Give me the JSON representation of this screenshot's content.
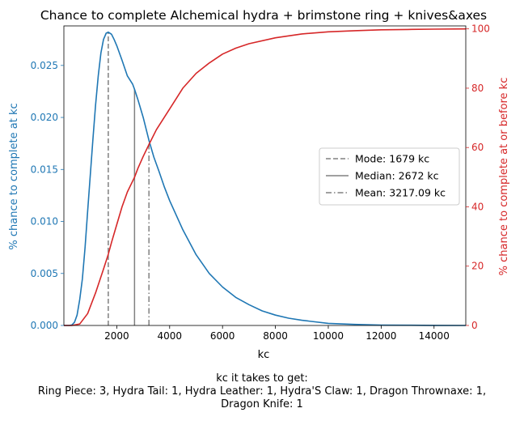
{
  "chart_data": {
    "type": "line",
    "title": "Chance to complete Alchemical hydra + brimstone ring + knives&axes",
    "xlabel": "kc",
    "ylabel_left": "% chance to complete at kc",
    "ylabel_right": "% chance to complete at or before kc",
    "xlim": [
      0,
      15200
    ],
    "ylim_left": [
      0,
      0.0288
    ],
    "ylim_right": [
      0,
      101
    ],
    "x_ticks": [
      2000,
      4000,
      6000,
      8000,
      10000,
      12000,
      14000
    ],
    "y_left_ticks": [
      0.0,
      0.005,
      0.01,
      0.015,
      0.02,
      0.025
    ],
    "y_left_tick_labels": [
      "0.000",
      "0.005",
      "0.010",
      "0.015",
      "0.020",
      "0.025"
    ],
    "y_right_ticks": [
      0,
      20,
      40,
      60,
      80,
      100
    ],
    "grid": false,
    "legend_position": "center-right",
    "series": [
      {
        "name": "% chance to complete at kc",
        "axis": "left",
        "color": "#1f77b4",
        "x": [
          0,
          100,
          200,
          300,
          400,
          500,
          600,
          700,
          800,
          900,
          1000,
          1100,
          1200,
          1300,
          1400,
          1500,
          1600,
          1679,
          1800,
          1900,
          2000,
          2200,
          2400,
          2600,
          2672,
          2800,
          3000,
          3217,
          3400,
          3600,
          3800,
          4000,
          4500,
          5000,
          5500,
          6000,
          6500,
          7000,
          7500,
          8000,
          8500,
          9000,
          10000,
          11000,
          12000,
          13000,
          14000,
          15200
        ],
        "y": [
          0.0,
          0.0,
          0.0,
          5e-05,
          0.0003,
          0.001,
          0.0025,
          0.0045,
          0.0075,
          0.011,
          0.0145,
          0.018,
          0.0212,
          0.024,
          0.0262,
          0.0275,
          0.0281,
          0.0282,
          0.028,
          0.0275,
          0.0269,
          0.0255,
          0.024,
          0.0232,
          0.0227,
          0.0217,
          0.02,
          0.0178,
          0.0162,
          0.0148,
          0.0133,
          0.012,
          0.0092,
          0.0068,
          0.005,
          0.0037,
          0.0027,
          0.002,
          0.0014,
          0.001,
          0.0007,
          0.0005,
          0.0002,
          0.0001,
          4e-05,
          2e-05,
          1e-05,
          0.0
        ]
      },
      {
        "name": "% chance to complete at or before kc",
        "axis": "right",
        "color": "#d62728",
        "x": [
          0,
          300,
          600,
          900,
          1200,
          1500,
          1679,
          1800,
          2000,
          2200,
          2400,
          2672,
          2800,
          3000,
          3217,
          3500,
          4000,
          4500,
          5000,
          5500,
          6000,
          6500,
          7000,
          8000,
          9000,
          10000,
          11000,
          12000,
          13000,
          14000,
          15200
        ],
        "y": [
          0,
          0,
          0.5,
          4,
          11,
          19,
          24,
          28,
          34,
          40,
          45,
          50,
          53,
          57,
          61,
          66,
          73,
          80,
          85,
          88.5,
          91.5,
          93.5,
          95,
          97,
          98.3,
          99,
          99.4,
          99.7,
          99.8,
          99.9,
          100
        ]
      }
    ],
    "annotations": [
      {
        "label": "Mode: 1679 kc",
        "x": 1679,
        "style": "dashed",
        "color": "#808080"
      },
      {
        "label": "Median: 2672 kc",
        "x": 2672,
        "style": "solid",
        "color": "#808080"
      },
      {
        "label": "Mean: 3217.09 kc",
        "x": 3217.09,
        "style": "dashdot",
        "color": "#808080"
      }
    ],
    "caption": [
      "kc it takes to get:",
      "Ring Piece: 3,  Hydra Tail: 1,  Hydra Leather: 1,  Hydra'S Claw: 1,  Dragon Thrownaxe: 1,",
      "Dragon Knife: 1"
    ]
  }
}
